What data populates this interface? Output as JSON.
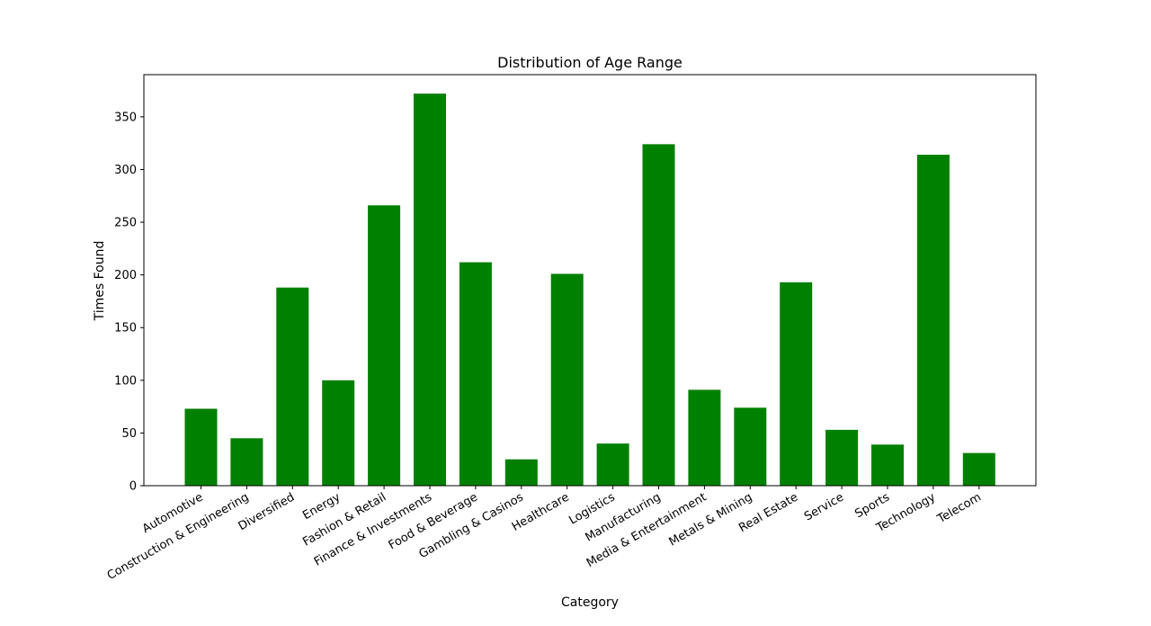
{
  "chart_data": {
    "type": "bar",
    "title": "Distribution of Age Range",
    "xlabel": "Category",
    "ylabel": "Times Found",
    "ylim": [
      0,
      390
    ],
    "yticks": [
      0,
      50,
      100,
      150,
      200,
      250,
      300,
      350
    ],
    "grid": false,
    "bar_color": "#008000",
    "categories": [
      "Automotive",
      "Construction & Engineering",
      "Diversified",
      "Energy",
      "Fashion & Retail",
      "Finance & Investments",
      "Food & Beverage",
      "Gambling & Casinos",
      "Healthcare",
      "Logistics",
      "Manufacturing",
      "Media & Entertainment",
      "Metals & Mining",
      "Real Estate",
      "Service",
      "Sports",
      "Technology",
      "Telecom"
    ],
    "values": [
      73,
      45,
      188,
      100,
      266,
      372,
      212,
      25,
      201,
      40,
      324,
      91,
      74,
      193,
      53,
      39,
      314,
      31
    ]
  }
}
